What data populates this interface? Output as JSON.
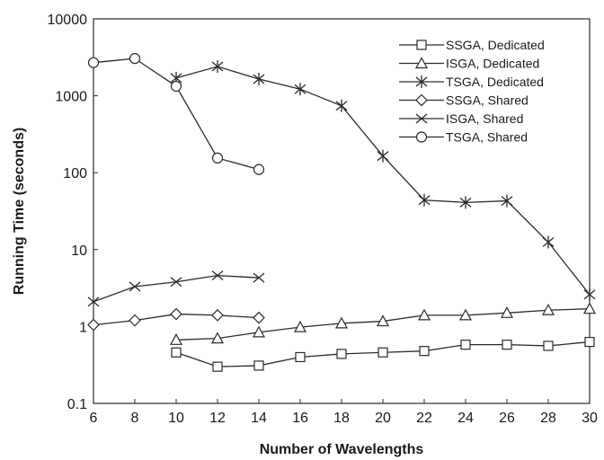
{
  "chart_data": {
    "type": "line",
    "xlabel": "Number of Wavelengths",
    "ylabel": "Running Time (seconds)",
    "xlim": [
      6,
      30
    ],
    "ylim": [
      0.1,
      10000
    ],
    "yscale": "log",
    "x_ticks": [
      6,
      8,
      10,
      12,
      14,
      16,
      18,
      20,
      22,
      24,
      26,
      28,
      30
    ],
    "y_ticks": [
      0.1,
      1,
      10,
      100,
      1000,
      10000
    ],
    "x_tick_labels": [
      "6",
      "8",
      "10",
      "12",
      "14",
      "16",
      "18",
      "20",
      "22",
      "24",
      "26",
      "28",
      "30"
    ],
    "y_tick_labels": [
      "0.1",
      "1",
      "10",
      "100",
      "1000",
      "10000"
    ],
    "grid": false,
    "legend_position": "top-right",
    "series": [
      {
        "name": "SSGA, Dedicated",
        "marker": "square",
        "x": [
          10,
          12,
          14,
          16,
          18,
          20,
          22,
          24,
          26,
          28,
          30
        ],
        "y": [
          0.46,
          0.3,
          0.31,
          0.4,
          0.44,
          0.46,
          0.48,
          0.58,
          0.58,
          0.56,
          0.63
        ]
      },
      {
        "name": "ISGA, Dedicated",
        "marker": "triangle",
        "x": [
          10,
          12,
          14,
          16,
          18,
          20,
          22,
          24,
          26,
          28,
          30
        ],
        "y": [
          0.67,
          0.7,
          0.84,
          0.98,
          1.1,
          1.17,
          1.4,
          1.4,
          1.5,
          1.63,
          1.7
        ]
      },
      {
        "name": "TSGA, Dedicated",
        "marker": "asterisk",
        "x": [
          10,
          12,
          14,
          16,
          18,
          20,
          22,
          24,
          26,
          28,
          30
        ],
        "y": [
          1700,
          2400,
          1650,
          1220,
          740,
          165,
          44,
          41,
          43,
          12.5,
          2.6
        ]
      },
      {
        "name": "SSGA, Shared",
        "marker": "diamond",
        "x": [
          6,
          8,
          10,
          12,
          14
        ],
        "y": [
          1.05,
          1.2,
          1.45,
          1.4,
          1.3
        ]
      },
      {
        "name": "ISGA, Shared",
        "marker": "x",
        "x": [
          6,
          8,
          10,
          12,
          14
        ],
        "y": [
          2.1,
          3.3,
          3.8,
          4.6,
          4.3
        ]
      },
      {
        "name": "TSGA, Shared",
        "marker": "circle",
        "x": [
          6,
          8,
          10,
          12,
          14
        ],
        "y": [
          2700,
          3050,
          1330,
          155,
          110
        ]
      }
    ]
  }
}
